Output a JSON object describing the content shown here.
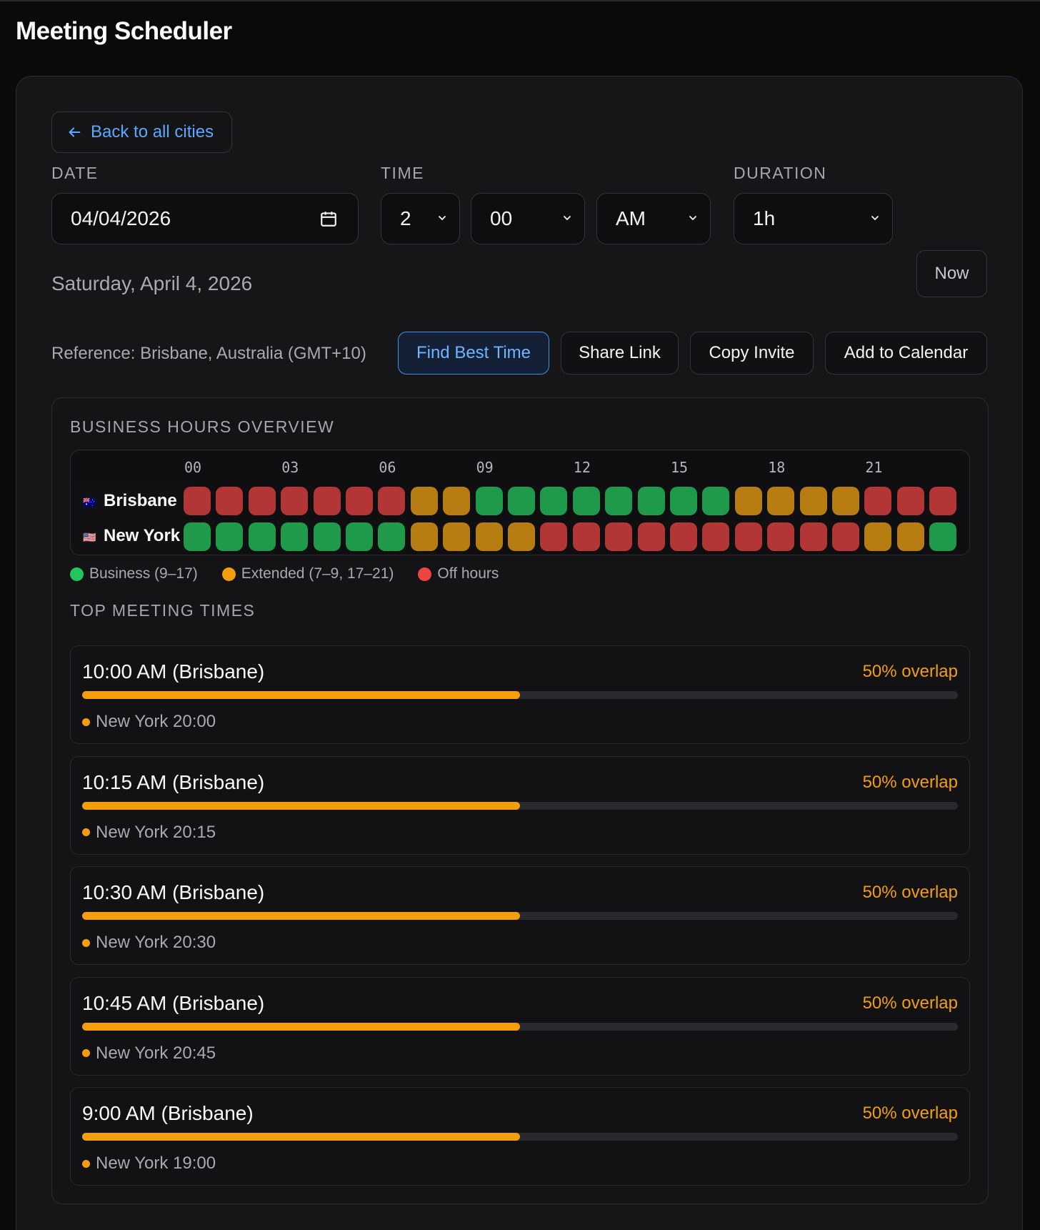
{
  "app": {
    "title": "Meeting Scheduler"
  },
  "back": {
    "label": "Back to all cities"
  },
  "form": {
    "date_label": "DATE",
    "time_label": "TIME",
    "duration_label": "DURATION",
    "date_value": "04/04/2026",
    "hour_value": "2",
    "minute_value": "00",
    "ampm_value": "AM",
    "duration_value": "1h",
    "date_long": "Saturday, April 4, 2026",
    "now_label": "Now"
  },
  "reference": "Reference: Brisbane, Australia (GMT+10)",
  "actions": {
    "find_best": "Find Best Time",
    "share": "Share Link",
    "copy": "Copy Invite",
    "calendar": "Add to Calendar"
  },
  "overview": {
    "title": "BUSINESS HOURS OVERVIEW",
    "hour_labels": [
      "00",
      "03",
      "06",
      "09",
      "12",
      "15",
      "18",
      "21"
    ],
    "rows": [
      {
        "city": "Brisbane",
        "flag": "🇦🇺",
        "hours": [
          "off",
          "off",
          "off",
          "off",
          "off",
          "off",
          "off",
          "ext",
          "ext",
          "biz",
          "biz",
          "biz",
          "biz",
          "biz",
          "biz",
          "biz",
          "biz",
          "ext",
          "ext",
          "ext",
          "ext",
          "off",
          "off",
          "off"
        ]
      },
      {
        "city": "New York",
        "flag": "🇺🇸",
        "hours": [
          "biz",
          "biz",
          "biz",
          "biz",
          "biz",
          "biz",
          "biz",
          "ext",
          "ext",
          "ext",
          "ext",
          "off",
          "off",
          "off",
          "off",
          "off",
          "off",
          "off",
          "off",
          "off",
          "off",
          "ext",
          "ext",
          "biz"
        ]
      }
    ],
    "legend": [
      {
        "label": "Business (9–17)",
        "color": "#22c55e"
      },
      {
        "label": "Extended (7–9, 17–21)",
        "color": "#f59e0b"
      },
      {
        "label": "Off hours",
        "color": "#ef4444"
      }
    ]
  },
  "top_times": {
    "title": "TOP MEETING TIMES",
    "items": [
      {
        "time": "10:00 AM (Brisbane)",
        "overlap": "50% overlap",
        "overlap_fraction": 0.5,
        "detail": "New York 20:00"
      },
      {
        "time": "10:15 AM (Brisbane)",
        "overlap": "50% overlap",
        "overlap_fraction": 0.5,
        "detail": "New York 20:15"
      },
      {
        "time": "10:30 AM (Brisbane)",
        "overlap": "50% overlap",
        "overlap_fraction": 0.5,
        "detail": "New York 20:30"
      },
      {
        "time": "10:45 AM (Brisbane)",
        "overlap": "50% overlap",
        "overlap_fraction": 0.5,
        "detail": "New York 20:45"
      },
      {
        "time": "9:00 AM (Brisbane)",
        "overlap": "50% overlap",
        "overlap_fraction": 0.5,
        "detail": "New York 19:00"
      }
    ]
  },
  "colors": {
    "biz": "#1f9a4b",
    "ext": "#b87d12",
    "off": "#b33636",
    "accent": "#5aa8ff"
  }
}
